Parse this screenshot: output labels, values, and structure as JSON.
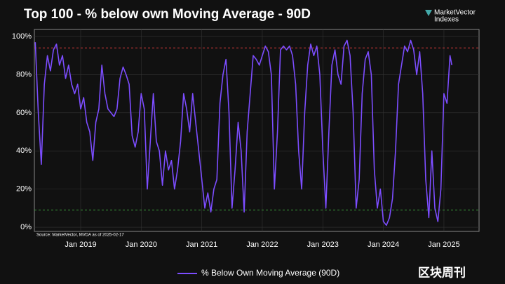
{
  "chart_data": {
    "type": "line",
    "title": "Top 100 - % below own Moving Average - 90D",
    "logo": [
      "MarketVector",
      "Indexes"
    ],
    "annotation": "Source: MarketVector, MVDA as of 2025-02-17",
    "watermark": "区块周刊",
    "x": [
      2018.25,
      2018.3,
      2018.35,
      2018.4,
      2018.45,
      2018.5,
      2018.55,
      2018.6,
      2018.65,
      2018.7,
      2018.75,
      2018.8,
      2018.85,
      2018.9,
      2018.95,
      2019,
      2019.05,
      2019.1,
      2019.15,
      2019.2,
      2019.25,
      2019.3,
      2019.35,
      2019.4,
      2019.45,
      2019.5,
      2019.55,
      2019.6,
      2019.65,
      2019.7,
      2019.75,
      2019.8,
      2019.85,
      2019.9,
      2019.95,
      2020,
      2020.05,
      2020.1,
      2020.15,
      2020.2,
      2020.25,
      2020.3,
      2020.35,
      2020.4,
      2020.45,
      2020.5,
      2020.55,
      2020.6,
      2020.65,
      2020.7,
      2020.75,
      2020.8,
      2020.85,
      2020.9,
      2020.95,
      2021,
      2021.05,
      2021.1,
      2021.15,
      2021.2,
      2021.25,
      2021.3,
      2021.35,
      2021.4,
      2021.45,
      2021.5,
      2021.55,
      2021.6,
      2021.65,
      2021.7,
      2021.75,
      2021.8,
      2021.85,
      2021.9,
      2021.95,
      2022,
      2022.05,
      2022.1,
      2022.15,
      2022.2,
      2022.25,
      2022.3,
      2022.35,
      2022.4,
      2022.45,
      2022.5,
      2022.55,
      2022.6,
      2022.65,
      2022.7,
      2022.75,
      2022.8,
      2022.85,
      2022.9,
      2022.95,
      2023,
      2023.05,
      2023.1,
      2023.15,
      2023.2,
      2023.25,
      2023.3,
      2023.35,
      2023.4,
      2023.45,
      2023.5,
      2023.55,
      2023.6,
      2023.65,
      2023.7,
      2023.75,
      2023.8,
      2023.85,
      2023.9,
      2023.95,
      2024,
      2024.05,
      2024.1,
      2024.15,
      2024.2,
      2024.25,
      2024.3,
      2024.35,
      2024.4,
      2024.45,
      2024.5,
      2024.55,
      2024.6,
      2024.65,
      2024.7,
      2024.75,
      2024.8,
      2024.85,
      2024.9,
      2024.95,
      2025,
      2025.05,
      2025.1,
      2025.13
    ],
    "series": [
      {
        "name": "% Below Own Moving Average (90D)",
        "color": "#7c4dff",
        "values": [
          97,
          60,
          33,
          75,
          90,
          82,
          93,
          96,
          85,
          90,
          78,
          85,
          75,
          70,
          75,
          62,
          68,
          55,
          50,
          35,
          55,
          62,
          85,
          70,
          62,
          60,
          58,
          62,
          78,
          84,
          80,
          75,
          48,
          42,
          50,
          70,
          62,
          20,
          45,
          70,
          45,
          40,
          22,
          40,
          30,
          35,
          20,
          30,
          45,
          70,
          62,
          50,
          70,
          55,
          40,
          25,
          10,
          18,
          8,
          20,
          25,
          65,
          80,
          88,
          60,
          10,
          30,
          55,
          40,
          8,
          50,
          70,
          90,
          88,
          85,
          90,
          95,
          92,
          80,
          20,
          50,
          93,
          95,
          93,
          95,
          90,
          75,
          40,
          20,
          60,
          85,
          96,
          90,
          95,
          80,
          40,
          10,
          50,
          85,
          93,
          80,
          75,
          95,
          98,
          90,
          60,
          10,
          25,
          70,
          88,
          92,
          80,
          30,
          10,
          20,
          3,
          1,
          5,
          15,
          40,
          75,
          85,
          95,
          92,
          98,
          93,
          80,
          92,
          70,
          25,
          5,
          40,
          10,
          3,
          20,
          70,
          65,
          90,
          85
        ]
      }
    ],
    "reference_lines": [
      {
        "value": 94,
        "color": "#e03c3c"
      },
      {
        "value": 9,
        "color": "#3aa03a"
      }
    ],
    "xlim": [
      2018.235,
      2025.58
    ],
    "xticks": [
      {
        "value": 2019,
        "label": "Jan 2019"
      },
      {
        "value": 2020,
        "label": "Jan 2020"
      },
      {
        "value": 2021,
        "label": "Jan 2021"
      },
      {
        "value": 2022,
        "label": "Jan 2022"
      },
      {
        "value": 2023,
        "label": "Jan 2023"
      },
      {
        "value": 2024,
        "label": "Jan 2024"
      },
      {
        "value": 2025,
        "label": "Jan 2025"
      }
    ],
    "ylim": [
      -2.2,
      103.7
    ],
    "yticks": [
      {
        "value": 0,
        "label": "0%"
      },
      {
        "value": 20,
        "label": "20%"
      },
      {
        "value": 40,
        "label": "40%"
      },
      {
        "value": 60,
        "label": "60%"
      },
      {
        "value": 80,
        "label": "80%"
      },
      {
        "value": 100,
        "label": "100%"
      }
    ],
    "grid": true,
    "legend": "bottom"
  }
}
